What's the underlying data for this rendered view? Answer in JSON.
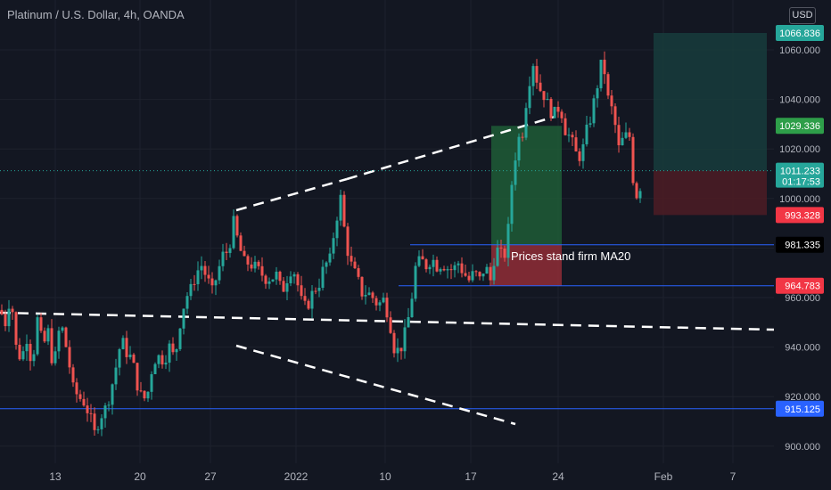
{
  "header": {
    "title": "Platinum / U.S. Dollar, 4h, OANDA",
    "currency_button": "USD"
  },
  "chart_data": {
    "type": "candlestick",
    "y_axis": {
      "ticks": [
        900,
        920,
        940,
        960,
        980,
        1000,
        1020,
        1040,
        1060
      ],
      "tick_labels": [
        "900.000",
        "920.000",
        "940.000",
        "960.000",
        "980.000",
        "1000.000",
        "1020.000",
        "1040.000",
        "1060.000"
      ],
      "ylim": [
        894.5,
        1078
      ]
    },
    "x_axis": {
      "labels": [
        "13",
        "20",
        "27",
        "2022",
        "10",
        "17",
        "24",
        "Feb",
        "7"
      ],
      "dates": [
        "2021-12-13",
        "2021-12-20",
        "2021-12-27",
        "2022-01-03",
        "2022-01-10",
        "2022-01-17",
        "2022-01-24",
        "2022-02-01",
        "2022-02-07"
      ]
    },
    "price_labels": [
      {
        "value": 1066.836,
        "text": "1066.836",
        "color": "#26a69a"
      },
      {
        "value": 1029.336,
        "text": "1029.336",
        "color": "#2e9e49"
      },
      {
        "value": 1011.233,
        "text": "1011.233",
        "sub": "01:17:53",
        "color": "#26a69a"
      },
      {
        "value": 993.328,
        "text": "993.328",
        "color": "#f23645"
      },
      {
        "value": 981.335,
        "text": "981.335",
        "color": "#000000"
      },
      {
        "value": 964.783,
        "text": "964.783",
        "color": "#f23645"
      },
      {
        "value": 915.125,
        "text": "915.125",
        "color": "#2962ff"
      }
    ],
    "horizontal_levels": [
      981.335,
      964.783,
      915.125
    ],
    "last_price": 1011.233,
    "positions": [
      {
        "name": "completed-long",
        "entry": 964.783,
        "target": 1029.336,
        "stop": 981.335,
        "target_color": "#1f5c36",
        "stop_color": "#8a2b35"
      },
      {
        "name": "planned-long",
        "entry": 1011.233,
        "target": 1066.836,
        "stop": 993.328,
        "target_color": "#173c3c",
        "stop_color": "#4a1c25"
      }
    ],
    "annotations": [
      {
        "text": "Prices stand firm MA20",
        "value": 976
      }
    ],
    "candle_anchors": [
      [
        0,
        955
      ],
      [
        6,
        950
      ],
      [
        12,
        962
      ],
      [
        18,
        940
      ],
      [
        24,
        935
      ],
      [
        30,
        944
      ],
      [
        36,
        933
      ],
      [
        42,
        951
      ],
      [
        48,
        940
      ],
      [
        54,
        946
      ],
      [
        60,
        931
      ],
      [
        66,
        946
      ],
      [
        70,
        947
      ],
      [
        76,
        937
      ],
      [
        82,
        923
      ],
      [
        88,
        920
      ],
      [
        94,
        918
      ],
      [
        100,
        913
      ],
      [
        106,
        905
      ],
      [
        112,
        912
      ],
      [
        118,
        915
      ],
      [
        124,
        922
      ],
      [
        130,
        932
      ],
      [
        136,
        943
      ],
      [
        142,
        938
      ],
      [
        148,
        935
      ],
      [
        154,
        925
      ],
      [
        160,
        918
      ],
      [
        166,
        922
      ],
      [
        172,
        935
      ],
      [
        178,
        936
      ],
      [
        184,
        935
      ],
      [
        190,
        940
      ],
      [
        196,
        935
      ],
      [
        202,
        950
      ],
      [
        208,
        960
      ],
      [
        214,
        963
      ],
      [
        220,
        970
      ],
      [
        226,
        973
      ],
      [
        232,
        968
      ],
      [
        238,
        962
      ],
      [
        244,
        970
      ],
      [
        250,
        977
      ],
      [
        256,
        979
      ],
      [
        262,
        990
      ],
      [
        268,
        981
      ],
      [
        274,
        974
      ],
      [
        280,
        974
      ],
      [
        286,
        972
      ],
      [
        292,
        970
      ],
      [
        298,
        968
      ],
      [
        304,
        968
      ],
      [
        310,
        969
      ],
      [
        316,
        962
      ],
      [
        322,
        968
      ],
      [
        328,
        973
      ],
      [
        334,
        965
      ],
      [
        340,
        955
      ],
      [
        346,
        958
      ],
      [
        352,
        963
      ],
      [
        358,
        966
      ],
      [
        364,
        973
      ],
      [
        370,
        975
      ],
      [
        376,
        990
      ],
      [
        382,
        1000
      ],
      [
        388,
        982
      ],
      [
        394,
        973
      ],
      [
        400,
        968
      ],
      [
        406,
        962
      ],
      [
        412,
        962
      ],
      [
        418,
        960
      ],
      [
        424,
        957
      ],
      [
        430,
        959
      ],
      [
        436,
        953
      ],
      [
        442,
        940
      ],
      [
        448,
        938
      ],
      [
        454,
        945
      ],
      [
        460,
        955
      ],
      [
        466,
        972
      ],
      [
        472,
        975
      ],
      [
        478,
        973
      ],
      [
        484,
        976
      ],
      [
        490,
        973
      ],
      [
        496,
        974
      ],
      [
        502,
        972
      ],
      [
        508,
        971
      ],
      [
        514,
        974
      ],
      [
        520,
        970
      ],
      [
        526,
        967
      ],
      [
        532,
        970
      ],
      [
        538,
        967
      ],
      [
        544,
        973
      ],
      [
        550,
        967
      ],
      [
        556,
        980
      ],
      [
        562,
        977
      ],
      [
        568,
        978
      ],
      [
        574,
        1006
      ],
      [
        580,
        1023
      ],
      [
        586,
        1027
      ],
      [
        592,
        1045
      ],
      [
        598,
        1055
      ],
      [
        604,
        1045
      ],
      [
        610,
        1042
      ],
      [
        616,
        1036
      ],
      [
        622,
        1034
      ],
      [
        628,
        1038
      ],
      [
        634,
        1028
      ],
      [
        640,
        1024
      ],
      [
        646,
        1018
      ],
      [
        652,
        1017
      ],
      [
        658,
        1027
      ],
      [
        664,
        1035
      ],
      [
        670,
        1046
      ],
      [
        676,
        1057
      ],
      [
        682,
        1040
      ],
      [
        688,
        1034
      ],
      [
        694,
        1020
      ],
      [
        700,
        1025
      ],
      [
        706,
        1025
      ],
      [
        712,
        1000
      ],
      [
        718,
        1005
      ],
      [
        720,
        1011.233
      ]
    ]
  }
}
